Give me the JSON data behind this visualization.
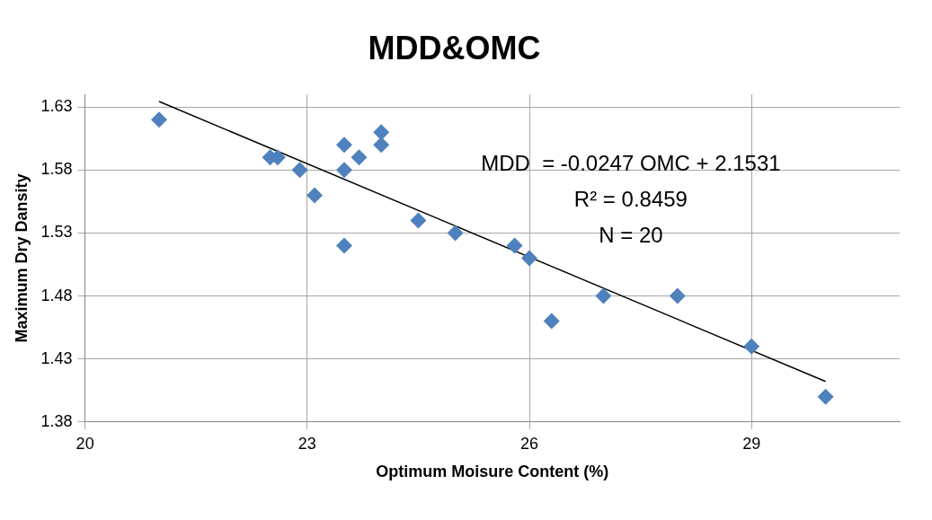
{
  "chart_data": {
    "type": "scatter",
    "title": "MDD&OMC",
    "xlabel": "Optimum Moisure Content (%)",
    "ylabel": "Maximum Dry Dansity",
    "annotations": [
      "MDD  = -0.0247 OMC + 2.1531",
      "R² = 0.8459",
      "N = 20"
    ],
    "series": [
      {
        "color": "#4f81bd",
        "marker": "diamond",
        "x": [
          21,
          22.5,
          22.6,
          22.9,
          23.1,
          23.5,
          23.5,
          23.5,
          23.7,
          24,
          24,
          24.5,
          25,
          25.8,
          26,
          26.3,
          27,
          28,
          29,
          30
        ],
        "values": [
          1.62,
          1.59,
          1.59,
          1.58,
          1.56,
          1.6,
          1.58,
          1.52,
          1.59,
          1.61,
          1.6,
          1.54,
          1.53,
          1.52,
          1.51,
          1.46,
          1.48,
          1.48,
          1.44,
          1.4
        ]
      },
      {
        "type": "line",
        "color": "#000000",
        "marker": "none",
        "x": [
          21,
          30
        ],
        "values": [
          1.6344,
          1.4121
        ]
      }
    ],
    "xlim": [
      20,
      31
    ],
    "xticks": [
      20,
      23,
      26,
      29
    ],
    "ylim": [
      1.38,
      1.64
    ],
    "yticks": [
      1.38,
      1.43,
      1.48,
      1.53,
      1.58,
      1.63
    ],
    "grid": true,
    "legend": false
  }
}
